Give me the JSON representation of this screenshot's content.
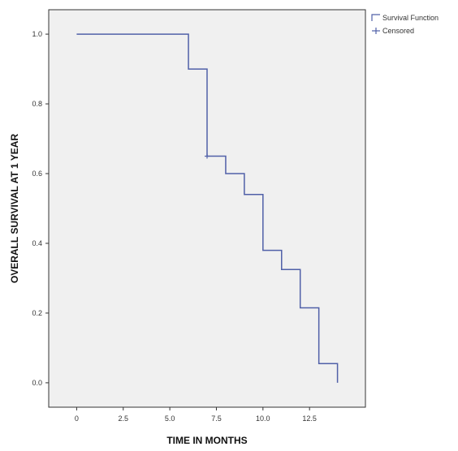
{
  "chart_data": {
    "type": "line",
    "title": "",
    "xlabel": "TIME IN MONTHS",
    "ylabel": "OVERALL SURVIVAL AT 1 YEAR",
    "xlim": [
      -1.5,
      15.5
    ],
    "ylim": [
      -0.07,
      1.07
    ],
    "xticks": [
      0,
      2.5,
      5,
      7.5,
      10,
      12.5
    ],
    "xtick_labels": [
      "0",
      "2.5",
      "5.0",
      "7.5",
      "10.0",
      "12.5"
    ],
    "yticks": [
      0,
      0.2,
      0.4,
      0.6,
      0.8,
      1.0
    ],
    "ytick_labels": [
      "0.0",
      "0.2",
      "0.4",
      "0.6",
      "0.8",
      "1.0"
    ],
    "grid": false,
    "legend_position": "top-right",
    "colors": {
      "plot_background": "#f0f0f0",
      "curve": "#5060a8",
      "axis": "#333333"
    },
    "series": [
      {
        "name": "Survival Function",
        "style": "step",
        "x": [
          0,
          6,
          7,
          8,
          9,
          10,
          11,
          12,
          13,
          14,
          14
        ],
        "y": [
          1.0,
          0.9,
          0.65,
          0.6,
          0.54,
          0.38,
          0.325,
          0.215,
          0.055,
          0.055,
          0.0
        ]
      },
      {
        "name": "Censored",
        "style": "marker",
        "marker": "plus",
        "x": [
          7
        ],
        "y": [
          0.65
        ]
      }
    ]
  }
}
